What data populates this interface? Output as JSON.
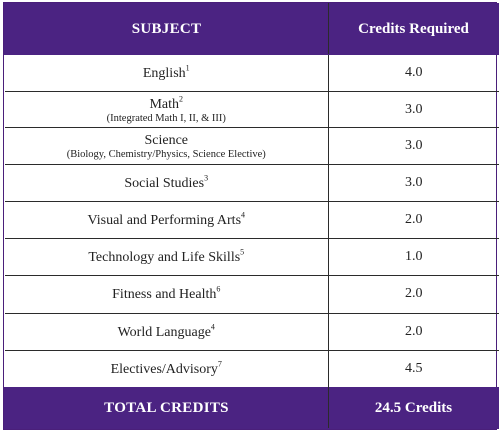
{
  "header": {
    "subject": "SUBJECT",
    "credits": "Credits Required"
  },
  "rows": [
    {
      "subject": "English",
      "sup": "1",
      "note": "",
      "credits": "4.0"
    },
    {
      "subject": "Math",
      "sup": "2",
      "note": "(Integrated Math I, II, & III)",
      "credits": "3.0"
    },
    {
      "subject": "Science",
      "sup": "",
      "note": "(Biology, Chemistry/Physics, Science Elective)",
      "credits": "3.0"
    },
    {
      "subject": "Social Studies",
      "sup": "3",
      "note": "",
      "credits": "3.0"
    },
    {
      "subject": "Visual and Performing Arts",
      "sup": "4",
      "note": "",
      "credits": "2.0"
    },
    {
      "subject": "Technology and Life Skills",
      "sup": "5",
      "note": "",
      "credits": "1.0"
    },
    {
      "subject": "Fitness and Health",
      "sup": "6",
      "note": "",
      "credits": "2.0"
    },
    {
      "subject": "World Language",
      "sup": "4",
      "note": "",
      "credits": "2.0"
    },
    {
      "subject": "Electives/Advisory",
      "sup": "7",
      "note": "",
      "credits": "4.5"
    }
  ],
  "footer": {
    "label": "TOTAL CREDITS",
    "value": "24.5 Credits"
  },
  "colors": {
    "header_bg": "#4b2382",
    "header_text": "#ffffff",
    "border": "#2b2b2b"
  }
}
